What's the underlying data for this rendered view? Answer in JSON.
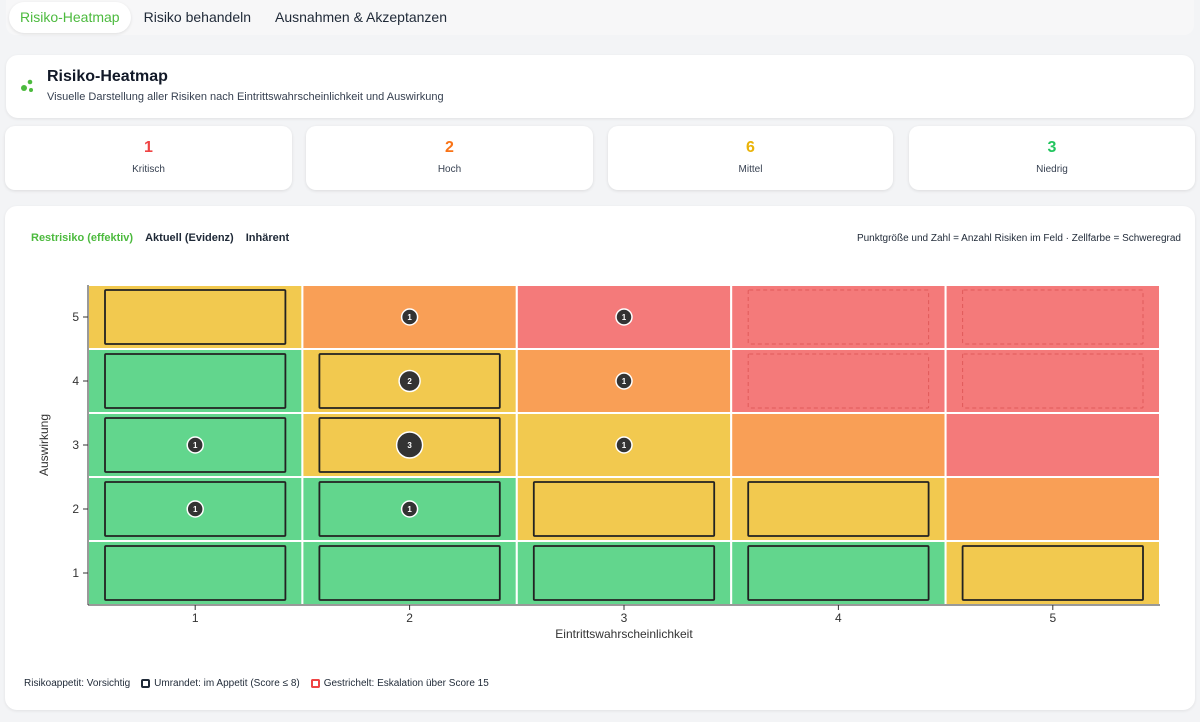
{
  "tabs": [
    {
      "label": "Risiko-Heatmap",
      "active": true
    },
    {
      "label": "Risiko behandeln",
      "active": false
    },
    {
      "label": "Ausnahmen & Akzeptanzen",
      "active": false
    }
  ],
  "header": {
    "title": "Risiko-Heatmap",
    "subtitle": "Visuelle Darstellung aller Risiken nach Eintrittswahrscheinlichkeit und Auswirkung",
    "icon": "bubbles-icon"
  },
  "stats": [
    {
      "value": "1",
      "label": "Kritisch",
      "color": "#ef4444"
    },
    {
      "value": "2",
      "label": "Hoch",
      "color": "#f97316"
    },
    {
      "value": "6",
      "label": "Mittel",
      "color": "#eab308"
    },
    {
      "value": "3",
      "label": "Niedrig",
      "color": "#22c55e"
    }
  ],
  "view_modes": [
    {
      "label": "Restrisiko (effektiv)",
      "active": true
    },
    {
      "label": "Aktuell (Evidenz)",
      "active": false
    },
    {
      "label": "Inhärent",
      "active": false
    }
  ],
  "legend_note": "Punktgröße und Zahl = Anzahl Risiken im Feld · Zellfarbe = Schweregrad",
  "colors": {
    "green": "#62d68d",
    "yellow": "#f2c94f",
    "orange": "#f99f56",
    "red": "#f47a7a"
  },
  "chart_data": {
    "type": "heatmap",
    "xlabel": "Eintrittswahrscheinlichkeit",
    "ylabel": "Auswirkung",
    "x_categories": [
      "1",
      "2",
      "3",
      "4",
      "5"
    ],
    "y_categories": [
      "1",
      "2",
      "3",
      "4",
      "5"
    ],
    "rows_top_to_bottom": [
      {
        "impact": 5,
        "cells": [
          {
            "level": "yellow",
            "outline": "solid",
            "count": 0
          },
          {
            "level": "orange",
            "outline": "none",
            "count": 1
          },
          {
            "level": "red",
            "outline": "none",
            "count": 1
          },
          {
            "level": "red",
            "outline": "dashed",
            "count": 0
          },
          {
            "level": "red",
            "outline": "dashed",
            "count": 0
          }
        ]
      },
      {
        "impact": 4,
        "cells": [
          {
            "level": "green",
            "outline": "solid",
            "count": 0
          },
          {
            "level": "yellow",
            "outline": "solid",
            "count": 2
          },
          {
            "level": "orange",
            "outline": "none",
            "count": 1
          },
          {
            "level": "red",
            "outline": "dashed",
            "count": 0
          },
          {
            "level": "red",
            "outline": "dashed",
            "count": 0
          }
        ]
      },
      {
        "impact": 3,
        "cells": [
          {
            "level": "green",
            "outline": "solid",
            "count": 1
          },
          {
            "level": "yellow",
            "outline": "solid",
            "count": 3
          },
          {
            "level": "yellow",
            "outline": "none",
            "count": 1
          },
          {
            "level": "orange",
            "outline": "none",
            "count": 0
          },
          {
            "level": "red",
            "outline": "none",
            "count": 0
          }
        ]
      },
      {
        "impact": 2,
        "cells": [
          {
            "level": "green",
            "outline": "solid",
            "count": 1
          },
          {
            "level": "green",
            "outline": "solid",
            "count": 1
          },
          {
            "level": "yellow",
            "outline": "solid",
            "count": 0
          },
          {
            "level": "yellow",
            "outline": "solid",
            "count": 0
          },
          {
            "level": "orange",
            "outline": "none",
            "count": 0
          }
        ]
      },
      {
        "impact": 1,
        "cells": [
          {
            "level": "green",
            "outline": "solid",
            "count": 0
          },
          {
            "level": "green",
            "outline": "solid",
            "count": 0
          },
          {
            "level": "green",
            "outline": "solid",
            "count": 0
          },
          {
            "level": "green",
            "outline": "solid",
            "count": 0
          },
          {
            "level": "yellow",
            "outline": "solid",
            "count": 0
          }
        ]
      }
    ]
  },
  "footer": {
    "appetite": "Risikoappetit: Vorsichtig",
    "solid_legend": "Umrandet: im Appetit (Score ≤ 8)",
    "dashed_legend": "Gestrichelt: Eskalation über Score 15"
  }
}
